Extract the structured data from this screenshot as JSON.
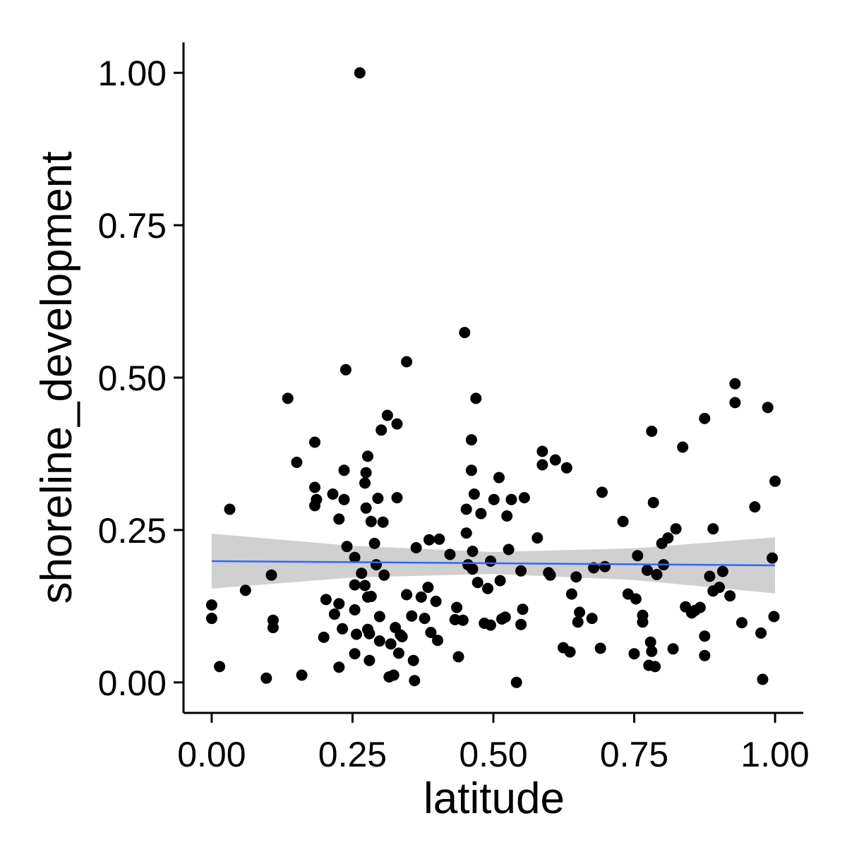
{
  "chart_data": {
    "type": "scatter",
    "xlabel": "latitude",
    "ylabel": "shoreline_development",
    "xlim": [
      -0.05,
      1.05
    ],
    "ylim": [
      -0.05,
      1.05
    ],
    "x_ticks": [
      0,
      0.25,
      0.5,
      0.75,
      1
    ],
    "x_tick_labels": [
      "0.00",
      "0.25",
      "0.50",
      "0.75",
      "1.00"
    ],
    "y_ticks": [
      0,
      0.25,
      0.5,
      0.75,
      1
    ],
    "y_tick_labels": [
      "0.00",
      "0.25",
      "0.50",
      "0.75",
      "1.00"
    ],
    "grid": false,
    "point_color": "#000000",
    "trend_line": {
      "type": "linear",
      "color": "#3366FF",
      "x": [
        0,
        1
      ],
      "y": [
        0.199,
        0.192
      ],
      "confidence_band": {
        "color": "#C8C8C8",
        "x": [
          0,
          0.25,
          0.5,
          0.75,
          1
        ],
        "lower": [
          0.154,
          0.172,
          0.178,
          0.168,
          0.146
        ],
        "upper": [
          0.244,
          0.224,
          0.214,
          0.22,
          0.238
        ]
      }
    },
    "points": [
      [
        0.263,
        1.0
      ],
      [
        0.0,
        0.127
      ],
      [
        0.0,
        0.105
      ],
      [
        0.014,
        0.026
      ],
      [
        0.032,
        0.284
      ],
      [
        0.06,
        0.151
      ],
      [
        0.097,
        0.007
      ],
      [
        0.106,
        0.176
      ],
      [
        0.109,
        0.102
      ],
      [
        0.109,
        0.09
      ],
      [
        0.135,
        0.466
      ],
      [
        0.151,
        0.361
      ],
      [
        0.16,
        0.012
      ],
      [
        0.183,
        0.394
      ],
      [
        0.183,
        0.32
      ],
      [
        0.183,
        0.29
      ],
      [
        0.186,
        0.3
      ],
      [
        0.199,
        0.074
      ],
      [
        0.203,
        0.136
      ],
      [
        0.215,
        0.309
      ],
      [
        0.218,
        0.112
      ],
      [
        0.226,
        0.129
      ],
      [
        0.226,
        0.268
      ],
      [
        0.226,
        0.025
      ],
      [
        0.232,
        0.088
      ],
      [
        0.235,
        0.3
      ],
      [
        0.235,
        0.348
      ],
      [
        0.238,
        0.513
      ],
      [
        0.24,
        0.223
      ],
      [
        0.254,
        0.047
      ],
      [
        0.254,
        0.205
      ],
      [
        0.254,
        0.119
      ],
      [
        0.254,
        0.16
      ],
      [
        0.257,
        0.079
      ],
      [
        0.266,
        0.179
      ],
      [
        0.272,
        0.159
      ],
      [
        0.272,
        0.327
      ],
      [
        0.274,
        0.286
      ],
      [
        0.274,
        0.344
      ],
      [
        0.277,
        0.371
      ],
      [
        0.277,
        0.14
      ],
      [
        0.277,
        0.087
      ],
      [
        0.28,
        0.08
      ],
      [
        0.28,
        0.036
      ],
      [
        0.283,
        0.264
      ],
      [
        0.283,
        0.141
      ],
      [
        0.289,
        0.228
      ],
      [
        0.292,
        0.193
      ],
      [
        0.295,
        0.302
      ],
      [
        0.298,
        0.108
      ],
      [
        0.298,
        0.068
      ],
      [
        0.301,
        0.414
      ],
      [
        0.304,
        0.263
      ],
      [
        0.306,
        0.176
      ],
      [
        0.312,
        0.438
      ],
      [
        0.315,
        0.009
      ],
      [
        0.318,
        0.063
      ],
      [
        0.323,
        0.012
      ],
      [
        0.326,
        0.09
      ],
      [
        0.329,
        0.303
      ],
      [
        0.329,
        0.424
      ],
      [
        0.332,
        0.048
      ],
      [
        0.335,
        0.078
      ],
      [
        0.338,
        0.075
      ],
      [
        0.346,
        0.526
      ],
      [
        0.346,
        0.144
      ],
      [
        0.355,
        0.109
      ],
      [
        0.358,
        0.036
      ],
      [
        0.36,
        0.003
      ],
      [
        0.363,
        0.221
      ],
      [
        0.372,
        0.14
      ],
      [
        0.378,
        0.105
      ],
      [
        0.384,
        0.156
      ],
      [
        0.386,
        0.234
      ],
      [
        0.389,
        0.082
      ],
      [
        0.398,
        0.133
      ],
      [
        0.401,
        0.069
      ],
      [
        0.404,
        0.235
      ],
      [
        0.423,
        0.21
      ],
      [
        0.432,
        0.103
      ],
      [
        0.435,
        0.123
      ],
      [
        0.438,
        0.042
      ],
      [
        0.446,
        0.102
      ],
      [
        0.449,
        0.574
      ],
      [
        0.452,
        0.245
      ],
      [
        0.452,
        0.284
      ],
      [
        0.455,
        0.193
      ],
      [
        0.461,
        0.348
      ],
      [
        0.461,
        0.398
      ],
      [
        0.463,
        0.186
      ],
      [
        0.463,
        0.215
      ],
      [
        0.466,
        0.309
      ],
      [
        0.469,
        0.466
      ],
      [
        0.472,
        0.164
      ],
      [
        0.478,
        0.277
      ],
      [
        0.484,
        0.097
      ],
      [
        0.49,
        0.154
      ],
      [
        0.495,
        0.094
      ],
      [
        0.495,
        0.199
      ],
      [
        0.501,
        0.3
      ],
      [
        0.51,
        0.336
      ],
      [
        0.512,
        0.167
      ],
      [
        0.515,
        0.104
      ],
      [
        0.521,
        0.107
      ],
      [
        0.524,
        0.273
      ],
      [
        0.527,
        0.218
      ],
      [
        0.532,
        0.3
      ],
      [
        0.541,
        0.0
      ],
      [
        0.549,
        0.095
      ],
      [
        0.549,
        0.183
      ],
      [
        0.552,
        0.12
      ],
      [
        0.555,
        0.303
      ],
      [
        0.578,
        0.237
      ],
      [
        0.587,
        0.379
      ],
      [
        0.587,
        0.357
      ],
      [
        0.598,
        0.18
      ],
      [
        0.601,
        0.176
      ],
      [
        0.61,
        0.365
      ],
      [
        0.624,
        0.057
      ],
      [
        0.63,
        0.352
      ],
      [
        0.636,
        0.05
      ],
      [
        0.639,
        0.145
      ],
      [
        0.647,
        0.173
      ],
      [
        0.65,
        0.099
      ],
      [
        0.653,
        0.115
      ],
      [
        0.675,
        0.105
      ],
      [
        0.678,
        0.188
      ],
      [
        0.69,
        0.056
      ],
      [
        0.693,
        0.312
      ],
      [
        0.698,
        0.19
      ],
      [
        0.73,
        0.264
      ],
      [
        0.739,
        0.145
      ],
      [
        0.75,
        0.047
      ],
      [
        0.753,
        0.137
      ],
      [
        0.756,
        0.208
      ],
      [
        0.765,
        0.11
      ],
      [
        0.765,
        0.099
      ],
      [
        0.773,
        0.184
      ],
      [
        0.776,
        0.028
      ],
      [
        0.779,
        0.066
      ],
      [
        0.781,
        0.051
      ],
      [
        0.781,
        0.412
      ],
      [
        0.784,
        0.295
      ],
      [
        0.787,
        0.026
      ],
      [
        0.79,
        0.177
      ],
      [
        0.799,
        0.228
      ],
      [
        0.802,
        0.193
      ],
      [
        0.81,
        0.237
      ],
      [
        0.819,
        0.055
      ],
      [
        0.824,
        0.252
      ],
      [
        0.836,
        0.386
      ],
      [
        0.841,
        0.124
      ],
      [
        0.852,
        0.114
      ],
      [
        0.858,
        0.118
      ],
      [
        0.867,
        0.123
      ],
      [
        0.875,
        0.433
      ],
      [
        0.875,
        0.076
      ],
      [
        0.875,
        0.044
      ],
      [
        0.884,
        0.174
      ],
      [
        0.89,
        0.15
      ],
      [
        0.89,
        0.252
      ],
      [
        0.901,
        0.156
      ],
      [
        0.907,
        0.182
      ],
      [
        0.92,
        0.142
      ],
      [
        0.929,
        0.49
      ],
      [
        0.929,
        0.459
      ],
      [
        0.941,
        0.098
      ],
      [
        0.964,
        0.288
      ],
      [
        0.975,
        0.081
      ],
      [
        0.978,
        0.005
      ],
      [
        0.987,
        0.451
      ],
      [
        0.995,
        0.204
      ],
      [
        0.998,
        0.108
      ],
      [
        1.0,
        0.33
      ]
    ]
  }
}
